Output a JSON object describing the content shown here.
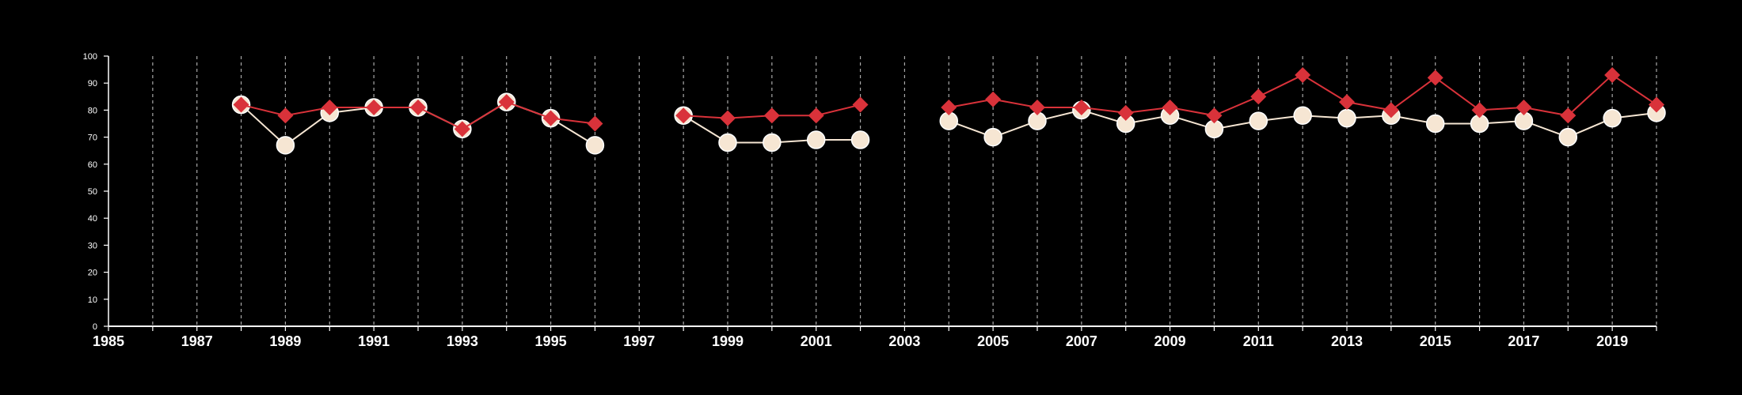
{
  "chart_data": {
    "type": "line",
    "title": "",
    "xlabel": "",
    "ylabel": "",
    "xlim": [
      1985,
      2020
    ],
    "ylim": [
      0,
      100
    ],
    "grid": "vertical dashed lines at each year",
    "x_ticks": [
      "1985",
      "1987",
      "1989",
      "1991",
      "1993",
      "1995",
      "1997",
      "1999",
      "2001",
      "2003",
      "2005",
      "2007",
      "2009",
      "2011",
      "2013",
      "2015",
      "2017",
      "2019"
    ],
    "y_ticks": [
      "0",
      "10",
      "20",
      "30",
      "40",
      "50",
      "60",
      "70",
      "80",
      "90",
      "100"
    ],
    "x": [
      1985,
      1986,
      1987,
      1988,
      1989,
      1990,
      1991,
      1992,
      1993,
      1994,
      1995,
      1996,
      1997,
      1998,
      1999,
      2000,
      2001,
      2002,
      2003,
      2004,
      2005,
      2006,
      2007,
      2008,
      2009,
      2010,
      2011,
      2012,
      2013,
      2014,
      2015,
      2016,
      2017,
      2018,
      2019,
      2020
    ],
    "series": [
      {
        "marker": "circle",
        "color": "#f6e6d3",
        "values": [
          null,
          null,
          null,
          82,
          67,
          79,
          81,
          81,
          73,
          83,
          77,
          67,
          null,
          78,
          68,
          68,
          69,
          69,
          null,
          76,
          70,
          76,
          80,
          75,
          78,
          73,
          76,
          78,
          77,
          78,
          75,
          75,
          76,
          70,
          77,
          79
        ]
      },
      {
        "marker": "diamond",
        "color": "#d9323a",
        "values": [
          null,
          null,
          null,
          82,
          78,
          81,
          81,
          81,
          73,
          83,
          77,
          75,
          null,
          78,
          77,
          78,
          78,
          82,
          null,
          81,
          84,
          81,
          81,
          79,
          81,
          78,
          85,
          93,
          83,
          80,
          92,
          80,
          81,
          78,
          93,
          82
        ]
      }
    ]
  }
}
